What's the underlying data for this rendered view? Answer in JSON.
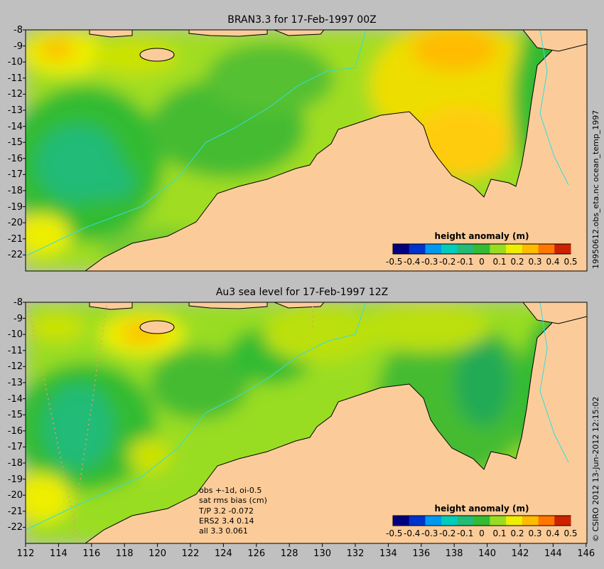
{
  "panels": [
    {
      "title": "BRAN3.3 for 17-Feb-1997 00Z",
      "side_label": "19950612.obs_eta.nc    ocean_temp_1997"
    },
    {
      "title": "Au3 sea level  for 17-Feb-1997 12Z",
      "side_label": "© CSIRO 2012  13-Jun-2012 12:15:02"
    }
  ],
  "latitude_ticks": [
    "-8",
    "-9",
    "-10",
    "-11",
    "-12",
    "-13",
    "-14",
    "-15",
    "-16",
    "-17",
    "-18",
    "-19",
    "-20",
    "-21",
    "-22"
  ],
  "longitude_ticks": [
    "112",
    "114",
    "116",
    "118",
    "120",
    "122",
    "124",
    "126",
    "128",
    "130",
    "132",
    "134",
    "136",
    "138",
    "140",
    "142",
    "144",
    "146"
  ],
  "colorbar": {
    "title": "height anomaly (m)",
    "tick_labels": [
      "-0.5",
      "-0.4",
      "-0.3",
      "-0.2",
      "-0.1",
      "0",
      "0.1",
      "0.2",
      "0.3",
      "0.4",
      "0.5"
    ],
    "colors": [
      "#00007f",
      "#0033cc",
      "#0099ee",
      "#00ccbb",
      "#22bb77",
      "#33bb33",
      "#99dd22",
      "#eeee00",
      "#ffbb00",
      "#ff7700",
      "#cc2200"
    ]
  },
  "obs_stats": {
    "lines": [
      "obs +-1d, oi-0.5",
      "sat rms bias (cm)",
      "T/P  3.2 -0.072",
      "ERS2  3.4 0.14",
      "all  3.3 0.061"
    ]
  },
  "colors": {
    "land": "#fbcc99",
    "background": "#c0c0c0",
    "coast": "#000000",
    "isobath": "#33dddd"
  }
}
